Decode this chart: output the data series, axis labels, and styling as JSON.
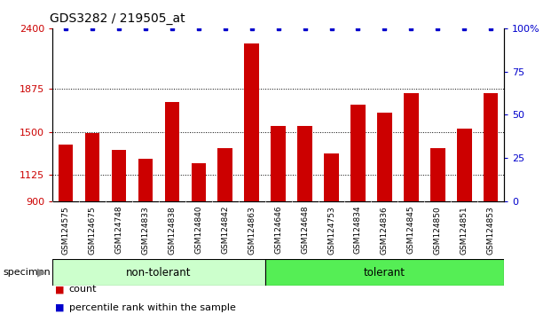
{
  "title": "GDS3282 / 219505_at",
  "categories": [
    "GSM124575",
    "GSM124675",
    "GSM124748",
    "GSM124833",
    "GSM124838",
    "GSM124840",
    "GSM124842",
    "GSM124863",
    "GSM124646",
    "GSM124648",
    "GSM124753",
    "GSM124834",
    "GSM124836",
    "GSM124845",
    "GSM124850",
    "GSM124851",
    "GSM124853"
  ],
  "bar_values": [
    1390,
    1490,
    1340,
    1265,
    1760,
    1230,
    1360,
    2270,
    1550,
    1550,
    1310,
    1740,
    1670,
    1840,
    1360,
    1530,
    1840
  ],
  "percentile_values": [
    100,
    100,
    100,
    100,
    100,
    100,
    100,
    100,
    100,
    100,
    100,
    100,
    100,
    100,
    100,
    100,
    100
  ],
  "bar_color": "#cc0000",
  "dot_color": "#0000cc",
  "ylim_left": [
    900,
    2400
  ],
  "ylim_right": [
    0,
    100
  ],
  "yticks_left": [
    900,
    1125,
    1500,
    1875,
    2400
  ],
  "ytick_labels_right": [
    "0",
    "25",
    "50",
    "75",
    "100%"
  ],
  "ytick_vals_right": [
    0,
    25,
    50,
    75,
    100
  ],
  "gridlines_at": [
    1125,
    1500,
    1875
  ],
  "non_tolerant_count": 8,
  "tolerant_count": 9,
  "group_label_non": "non-tolerant",
  "group_label_tol": "tolerant",
  "group_color_non": "#ccffcc",
  "group_color_tol": "#55ee55",
  "legend_count_label": "count",
  "legend_pct_label": "percentile rank within the sample",
  "bg_color": "#ffffff",
  "tick_label_bg": "#cccccc"
}
